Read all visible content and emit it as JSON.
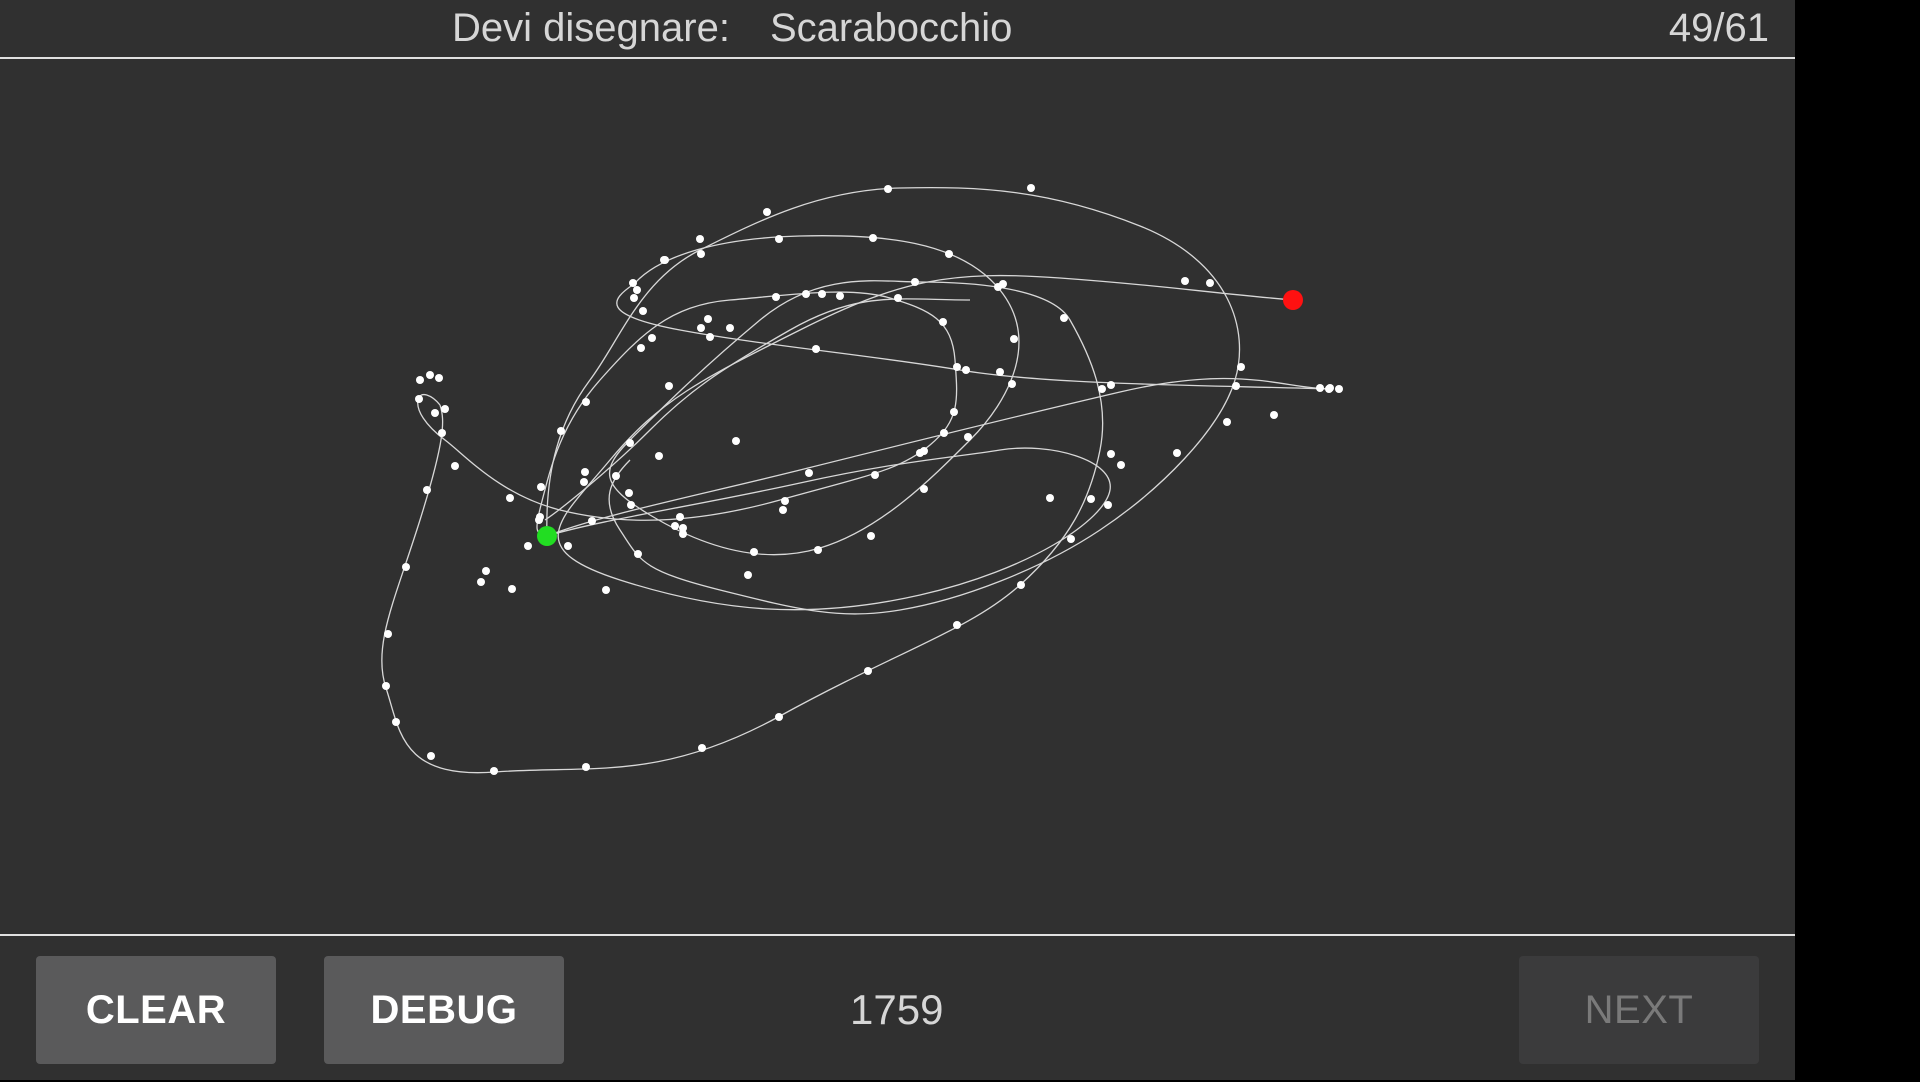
{
  "header": {
    "prompt_label": "Devi disegnare:",
    "prompt_word": "Scarabocchio",
    "progress": "49/61"
  },
  "footer": {
    "clear_label": "CLEAR",
    "debug_label": "DEBUG",
    "score": "1759",
    "next_label": "NEXT"
  },
  "colors": {
    "background": "#303030",
    "stroke": "#d8d8d8",
    "point": "#ffffff",
    "start_marker": "#22dd22",
    "end_marker": "#ff1111"
  },
  "canvas": {
    "icon_start": "green-dot",
    "icon_end": "red-dot"
  }
}
